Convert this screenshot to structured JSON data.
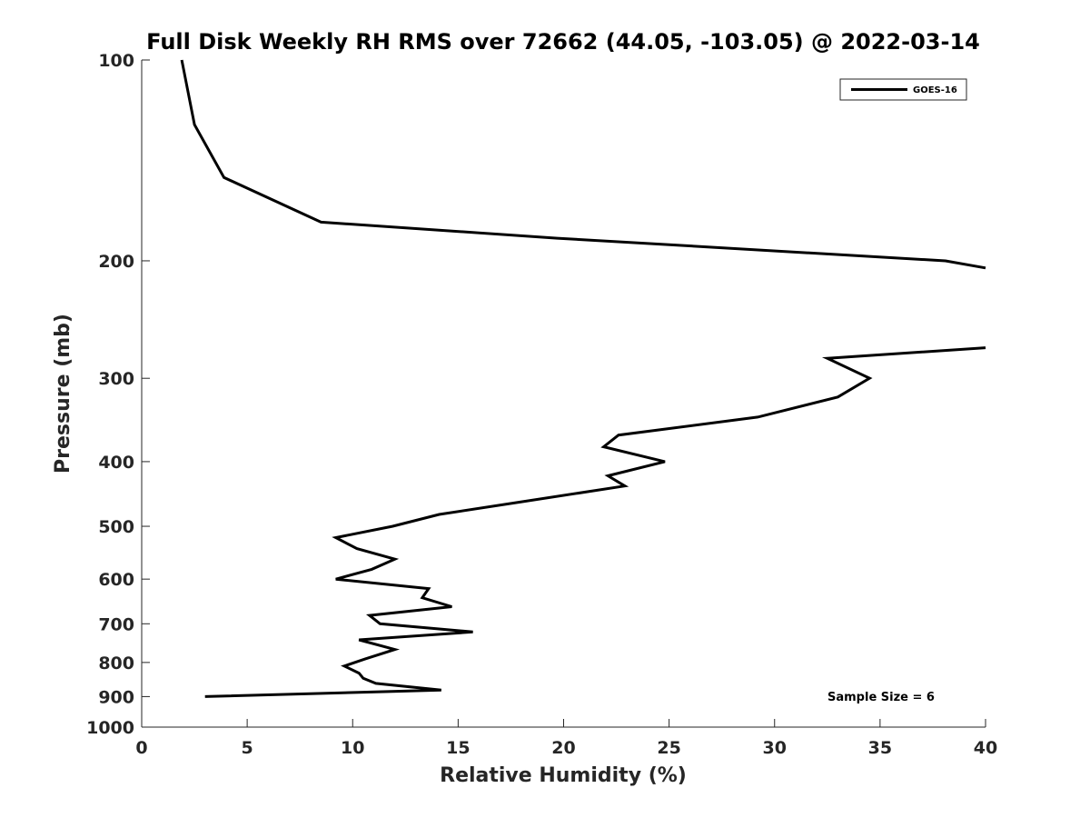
{
  "chart_data": {
    "type": "line",
    "title": "Full Disk Weekly RH RMS over 72662 (44.05, -103.05) @ 2022-03-14",
    "xlabel": "Relative Humidity (%)",
    "ylabel": "Pressure (mb)",
    "xlim": [
      0,
      40
    ],
    "ylim": [
      100,
      1000
    ],
    "y_scale": "log",
    "y_reversed": true,
    "grid": false,
    "legend_position": "top-right",
    "x_ticks": [
      0,
      5,
      10,
      15,
      20,
      25,
      30,
      35,
      40
    ],
    "y_ticks": [
      100,
      200,
      300,
      400,
      500,
      600,
      700,
      800,
      900,
      1000
    ],
    "annotation": "Sample Size = 6",
    "series": [
      {
        "name": "GOES-16",
        "color": "#000000",
        "segments": [
          [
            [
              1.9,
              100
            ],
            [
              2.5,
              125
            ],
            [
              3.9,
              150
            ],
            [
              8.5,
              175
            ],
            [
              19.7,
              185
            ],
            [
              38.1,
              200
            ],
            [
              40.0,
              205
            ]
          ],
          [
            [
              40.0,
              270
            ],
            [
              32.5,
              280
            ],
            [
              34.5,
              300
            ],
            [
              33.0,
              320
            ],
            [
              29.2,
              343
            ],
            [
              22.6,
              365
            ],
            [
              21.9,
              380
            ],
            [
              24.8,
              400
            ],
            [
              22.1,
              420
            ],
            [
              22.9,
              435
            ],
            [
              17.9,
              460
            ],
            [
              14.1,
              480
            ],
            [
              11.9,
              500
            ],
            [
              9.2,
              520
            ],
            [
              10.2,
              540
            ],
            [
              12.0,
              560
            ],
            [
              10.9,
              580
            ],
            [
              9.2,
              600
            ],
            [
              13.6,
              620
            ],
            [
              13.3,
              640
            ],
            [
              14.7,
              660
            ],
            [
              10.8,
              680
            ],
            [
              11.3,
              700
            ],
            [
              15.7,
              720
            ],
            [
              10.3,
              740
            ],
            [
              12.0,
              765
            ],
            [
              10.6,
              790
            ],
            [
              9.6,
              810
            ],
            [
              10.3,
              830
            ],
            [
              10.5,
              845
            ],
            [
              11.1,
              860
            ],
            [
              14.2,
              880
            ],
            [
              3.0,
              900
            ]
          ]
        ]
      }
    ]
  }
}
